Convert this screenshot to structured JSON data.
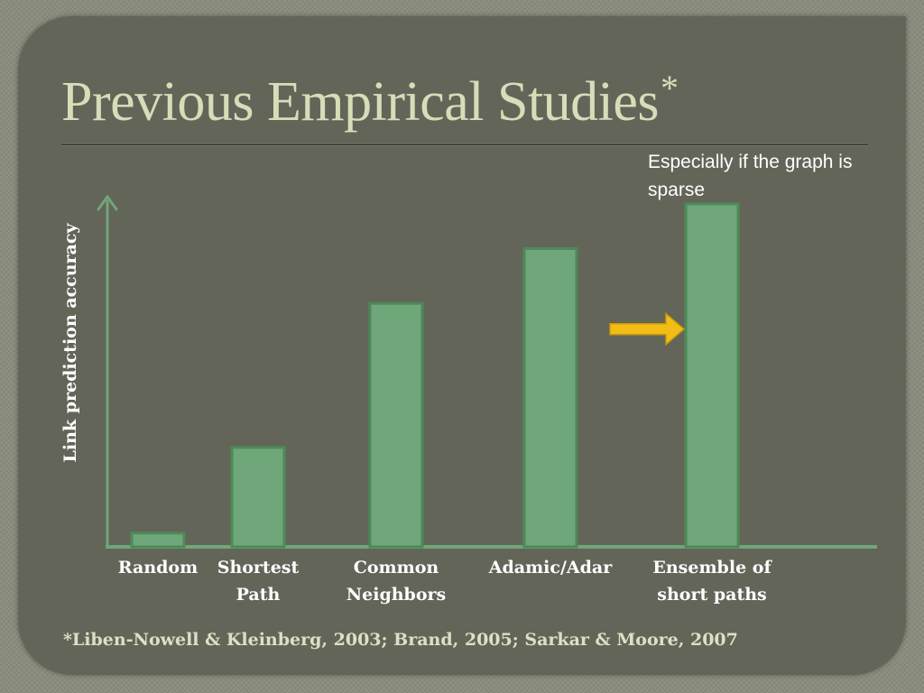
{
  "slide": {
    "title": "Previous Empirical Studies",
    "title_mark": "*",
    "note": "Especially if the graph is sparse",
    "citation": "*Liben-Nowell & Kleinberg, 2003; Brand, 2005;  Sarkar & Moore, 2007"
  },
  "chart_data": {
    "type": "bar",
    "title": "",
    "xlabel": "",
    "ylabel": "Link prediction accuracy",
    "categories": [
      "Random",
      "Shortest Path",
      "Common Neighbors",
      "Adamic/Adar",
      "Ensemble of short paths"
    ],
    "category_display": [
      "Random",
      "Shortest\nPath",
      "Common\nNeighbors",
      "Adamic/Adar",
      "Ensemble of\nshort paths"
    ],
    "values": [
      4,
      29,
      71,
      87,
      100
    ],
    "ylim": [
      0,
      100
    ],
    "tick_labels_shown": false,
    "grid": false,
    "legend": "none",
    "highlight_index": 4,
    "highlight_marker": "arrow",
    "colors": {
      "bar_fill": "#6fa67a",
      "bar_border": "#4d8a58",
      "axis": "#6fa67a",
      "arrow": "#f2bd15",
      "background": "#636559",
      "title": "#d8dcb8"
    }
  }
}
